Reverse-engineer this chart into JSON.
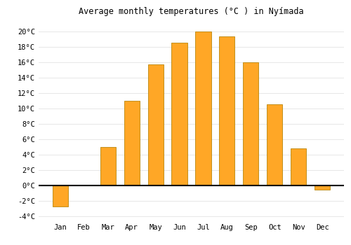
{
  "title": "Average monthly temperatures (°C ) in Nyímada",
  "months": [
    "Jan",
    "Feb",
    "Mar",
    "Apr",
    "May",
    "Jun",
    "Jul",
    "Aug",
    "Sep",
    "Oct",
    "Nov",
    "Dec"
  ],
  "values": [
    -2.7,
    0.05,
    5.0,
    11.0,
    15.7,
    18.5,
    20.0,
    19.3,
    16.0,
    10.5,
    4.8,
    -0.5
  ],
  "bar_color": "#FFA726",
  "bar_edge_color": "#B8860B",
  "zero_line_color": "#000000",
  "background_color": "#ffffff",
  "grid_color": "#dddddd",
  "ylim": [
    -4.5,
    21.5
  ],
  "yticks": [
    -4,
    -2,
    0,
    2,
    4,
    6,
    8,
    10,
    12,
    14,
    16,
    18,
    20
  ],
  "title_fontsize": 8.5,
  "tick_fontsize": 7.5,
  "bar_width": 0.65
}
